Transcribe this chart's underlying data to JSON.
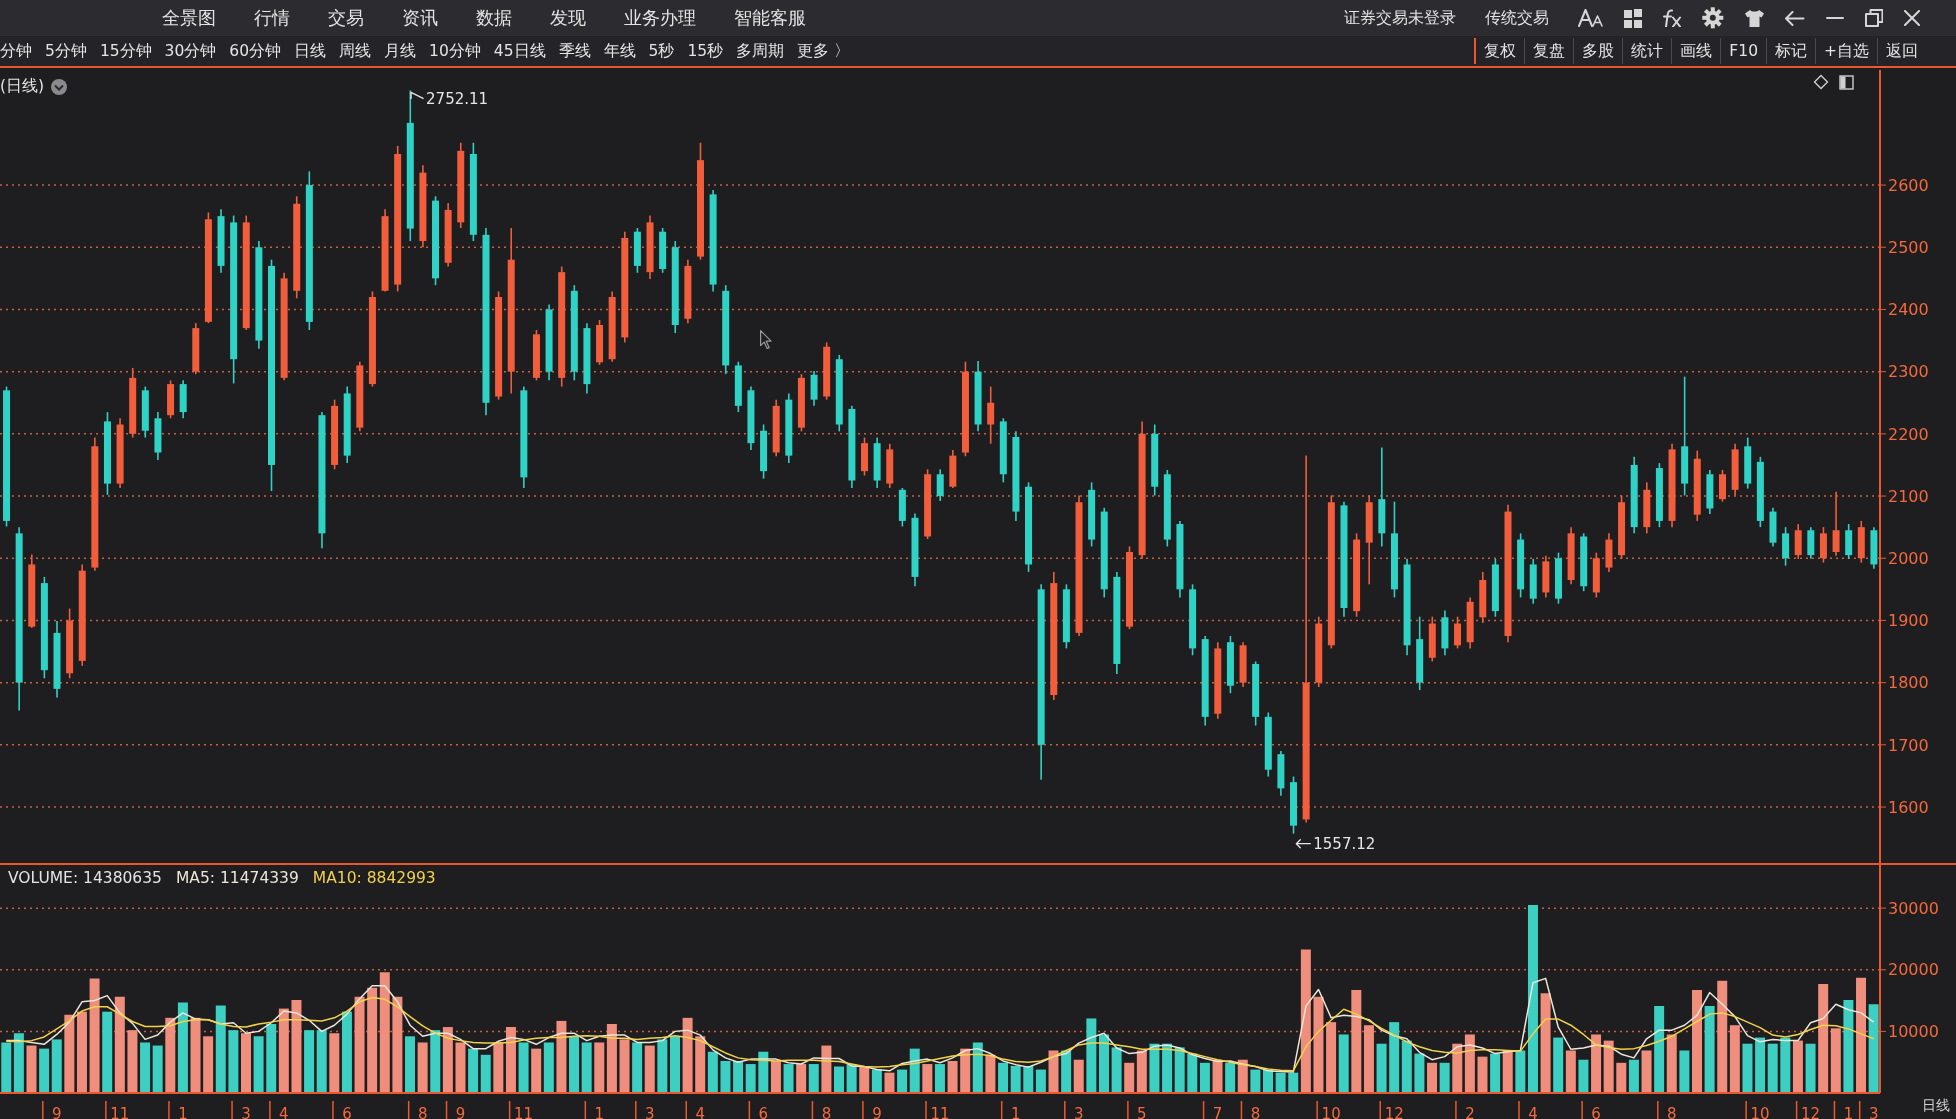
{
  "chart_data": [
    {
      "type": "other",
      "categories": [
        "全景图",
        "行情",
        "交易",
        "资讯",
        "数据",
        "发现",
        "业务办理",
        "智能客服"
      ],
      "annotations": [
        "证券交易未登录",
        "传统交易"
      ]
    },
    {
      "type": "other",
      "categories": [
        "分钟",
        "5分钟",
        "15分钟",
        "30分钟",
        "60分钟",
        "日线",
        "周线",
        "月线",
        "10分钟",
        "45日线",
        "季线",
        "年线",
        "5秒",
        "15秒",
        "多周期",
        "更多 〉"
      ],
      "annotations": [
        "复权",
        "复盘",
        "多股",
        "统计",
        "画线",
        "F10",
        "标记",
        "+自选",
        "返回"
      ]
    },
    {
      "type": "candlestick",
      "title": "(日线)",
      "tick_labels": "y",
      "grid": "y",
      "ylim": [
        1510,
        2785
      ],
      "yticks": [
        1600,
        1700,
        1800,
        1900,
        2000,
        2100,
        2200,
        2300,
        2400,
        2500,
        2600
      ],
      "categories": [
        null,
        null,
        null,
        null,
        "9",
        null,
        null,
        null,
        null,
        "11",
        null,
        null,
        null,
        null,
        "1",
        null,
        null,
        null,
        null,
        "3",
        null,
        null,
        "4",
        null,
        null,
        null,
        null,
        "6",
        null,
        null,
        null,
        null,
        null,
        "8",
        null,
        null,
        "9",
        null,
        null,
        null,
        null,
        "11",
        null,
        null,
        null,
        null,
        null,
        "1",
        null,
        null,
        null,
        "3",
        null,
        null,
        null,
        "4",
        null,
        null,
        null,
        null,
        "6",
        null,
        null,
        null,
        null,
        "8",
        null,
        null,
        null,
        "9",
        null,
        null,
        null,
        null,
        "11",
        null,
        null,
        null,
        null,
        null,
        "1",
        null,
        null,
        null,
        null,
        "3",
        null,
        null,
        null,
        null,
        "5",
        null,
        null,
        null,
        null,
        null,
        "7",
        null,
        null,
        "8",
        null,
        null,
        null,
        null,
        null,
        "10",
        null,
        null,
        null,
        null,
        "12",
        null,
        null,
        null,
        null,
        null,
        "2",
        null,
        null,
        null,
        null,
        "4",
        null,
        null,
        null,
        null,
        "6",
        null,
        null,
        null,
        null,
        null,
        "8",
        null,
        null,
        null,
        null,
        null,
        null,
        "10",
        null,
        null,
        null,
        "12",
        null,
        null,
        "1",
        null,
        "3"
      ],
      "ohlc": [
        [
          2270,
          2276,
          2051,
          2060
        ],
        [
          2040,
          2050,
          1755,
          1800
        ],
        [
          1890,
          2006,
          1888,
          1990
        ],
        [
          1960,
          1970,
          1807,
          1820
        ],
        [
          1880,
          1899,
          1776,
          1790
        ],
        [
          1815,
          1919,
          1807,
          1900
        ],
        [
          1835,
          1990,
          1827,
          1980
        ],
        [
          1985,
          2194,
          1980,
          2180
        ],
        [
          2220,
          2235,
          2102,
          2120
        ],
        [
          2120,
          2225,
          2113,
          2215
        ],
        [
          2200,
          2306,
          2194,
          2290
        ],
        [
          2270,
          2276,
          2194,
          2205
        ],
        [
          2225,
          2235,
          2158,
          2170
        ],
        [
          2230,
          2286,
          2225,
          2280
        ],
        [
          2280,
          2286,
          2225,
          2235
        ],
        [
          2300,
          2378,
          2296,
          2370
        ],
        [
          2380,
          2556,
          2378,
          2545
        ],
        [
          2550,
          2561,
          2459,
          2470
        ],
        [
          2540,
          2551,
          2281,
          2320
        ],
        [
          2370,
          2551,
          2367,
          2540
        ],
        [
          2500,
          2510,
          2337,
          2350
        ],
        [
          2470,
          2480,
          2108,
          2150
        ],
        [
          2290,
          2459,
          2286,
          2450
        ],
        [
          2430,
          2582,
          2418,
          2570
        ],
        [
          2600,
          2622,
          2367,
          2380
        ],
        [
          2230,
          2235,
          2016,
          2040
        ],
        [
          2150,
          2255,
          2143,
          2245
        ],
        [
          2265,
          2276,
          2153,
          2165
        ],
        [
          2210,
          2316,
          2204,
          2310
        ],
        [
          2280,
          2429,
          2276,
          2420
        ],
        [
          2430,
          2561,
          2429,
          2550
        ],
        [
          2440,
          2663,
          2429,
          2650
        ],
        [
          2700,
          2752.11,
          2510,
          2530
        ],
        [
          2510,
          2632,
          2500,
          2620
        ],
        [
          2575,
          2582,
          2439,
          2450
        ],
        [
          2475,
          2571,
          2469,
          2560
        ],
        [
          2540,
          2668,
          2531,
          2655
        ],
        [
          2650,
          2668,
          2510,
          2520
        ],
        [
          2520,
          2531,
          2230,
          2250
        ],
        [
          2260,
          2429,
          2255,
          2420
        ],
        [
          2300,
          2531,
          2265,
          2480
        ],
        [
          2270,
          2276,
          2113,
          2130
        ],
        [
          2290,
          2367,
          2286,
          2360
        ],
        [
          2400,
          2408,
          2286,
          2300
        ],
        [
          2290,
          2469,
          2276,
          2460
        ],
        [
          2430,
          2439,
          2286,
          2300
        ],
        [
          2370,
          2378,
          2265,
          2280
        ],
        [
          2315,
          2383,
          2311,
          2375
        ],
        [
          2320,
          2429,
          2316,
          2420
        ],
        [
          2355,
          2525,
          2347,
          2515
        ],
        [
          2525,
          2531,
          2459,
          2470
        ],
        [
          2460,
          2551,
          2449,
          2540
        ],
        [
          2525,
          2531,
          2459,
          2465
        ],
        [
          2500,
          2510,
          2362,
          2375
        ],
        [
          2385,
          2480,
          2378,
          2470
        ],
        [
          2485,
          2668,
          2480,
          2640
        ],
        [
          2585,
          2592,
          2429,
          2440
        ],
        [
          2430,
          2439,
          2296,
          2310
        ],
        [
          2310,
          2316,
          2235,
          2245
        ],
        [
          2270,
          2276,
          2174,
          2185
        ],
        [
          2205,
          2215,
          2128,
          2140
        ],
        [
          2170,
          2255,
          2164,
          2245
        ],
        [
          2255,
          2265,
          2153,
          2165
        ],
        [
          2210,
          2296,
          2204,
          2290
        ],
        [
          2295,
          2301,
          2245,
          2255
        ],
        [
          2260,
          2347,
          2255,
          2340
        ],
        [
          2320,
          2327,
          2204,
          2215
        ],
        [
          2240,
          2245,
          2113,
          2125
        ],
        [
          2140,
          2194,
          2133,
          2185
        ],
        [
          2185,
          2194,
          2113,
          2125
        ],
        [
          2120,
          2184,
          2113,
          2175
        ],
        [
          2110,
          2113,
          2051,
          2060
        ],
        [
          2065,
          2072,
          1955,
          1970
        ],
        [
          2035,
          2143,
          2031,
          2135
        ],
        [
          2135,
          2143,
          2092,
          2100
        ],
        [
          2115,
          2174,
          2113,
          2165
        ],
        [
          2170,
          2316,
          2164,
          2300
        ],
        [
          2300,
          2317,
          2204,
          2215
        ],
        [
          2215,
          2276,
          2184,
          2250
        ],
        [
          2220,
          2225,
          2122,
          2135
        ],
        [
          2195,
          2204,
          2060,
          2075
        ],
        [
          2115,
          2122,
          1978,
          1990
        ],
        [
          1950,
          1958,
          1644,
          1700
        ],
        [
          1780,
          1978,
          1772,
          1960
        ],
        [
          1950,
          1958,
          1855,
          1865
        ],
        [
          1880,
          2101,
          1875,
          2090
        ],
        [
          2110,
          2122,
          2019,
          2030
        ],
        [
          2075,
          2081,
          1937,
          1950
        ],
        [
          1970,
          1978,
          1814,
          1830
        ],
        [
          1890,
          2019,
          1886,
          2010
        ],
        [
          2005,
          2220,
          1999,
          2200
        ],
        [
          2200,
          2215,
          2101,
          2115
        ],
        [
          2135,
          2142,
          2019,
          2030
        ],
        [
          2055,
          2060,
          1937,
          1950
        ],
        [
          1950,
          1958,
          1844,
          1855
        ],
        [
          1870,
          1875,
          1731,
          1745
        ],
        [
          1750,
          1865,
          1742,
          1855
        ],
        [
          1865,
          1875,
          1783,
          1795
        ],
        [
          1800,
          1865,
          1793,
          1860
        ],
        [
          1830,
          1834,
          1731,
          1745
        ],
        [
          1745,
          1752,
          1649,
          1660
        ],
        [
          1685,
          1690,
          1618,
          1630
        ],
        [
          1640,
          1649,
          1557.12,
          1570
        ],
        [
          1580,
          2165,
          1575,
          1800
        ],
        [
          1800,
          1906,
          1793,
          1895
        ],
        [
          1860,
          2101,
          1855,
          2090
        ],
        [
          2085,
          2091,
          1906,
          1920
        ],
        [
          1915,
          2040,
          1906,
          2030
        ],
        [
          2025,
          2101,
          1958,
          2090
        ],
        [
          2095,
          2178,
          2019,
          2040
        ],
        [
          2040,
          2091,
          1937,
          1950
        ],
        [
          1990,
          1999,
          1844,
          1860
        ],
        [
          1870,
          1906,
          1788,
          1800
        ],
        [
          1840,
          1906,
          1834,
          1895
        ],
        [
          1905,
          1916,
          1844,
          1855
        ],
        [
          1860,
          1906,
          1855,
          1895
        ],
        [
          1865,
          1937,
          1855,
          1930
        ],
        [
          1905,
          1978,
          1896,
          1965
        ],
        [
          1990,
          1999,
          1906,
          1915
        ],
        [
          1875,
          2086,
          1865,
          2075
        ],
        [
          2030,
          2040,
          1937,
          1950
        ],
        [
          1990,
          1999,
          1927,
          1935
        ],
        [
          1945,
          2004,
          1937,
          1995
        ],
        [
          2000,
          2009,
          1927,
          1935
        ],
        [
          1965,
          2050,
          1958,
          2040
        ],
        [
          2035,
          2040,
          1947,
          1955
        ],
        [
          1945,
          2009,
          1937,
          2000
        ],
        [
          1985,
          2040,
          1978,
          2030
        ],
        [
          2005,
          2101,
          1999,
          2090
        ],
        [
          2150,
          2163,
          2040,
          2050
        ],
        [
          2050,
          2122,
          2040,
          2110
        ],
        [
          2145,
          2153,
          2050,
          2060
        ],
        [
          2060,
          2184,
          2050,
          2175
        ],
        [
          2180,
          2292,
          2101,
          2120
        ],
        [
          2070,
          2173,
          2060,
          2160
        ],
        [
          2135,
          2142,
          2071,
          2080
        ],
        [
          2095,
          2142,
          2091,
          2135
        ],
        [
          2110,
          2184,
          2101,
          2175
        ],
        [
          2180,
          2194,
          2112,
          2120
        ],
        [
          2155,
          2163,
          2050,
          2060
        ],
        [
          2075,
          2081,
          2019,
          2025
        ],
        [
          2040,
          2050,
          1988,
          2000
        ],
        [
          2005,
          2055,
          1999,
          2045
        ],
        [
          2045,
          2050,
          1999,
          2005
        ],
        [
          2000,
          2050,
          1993,
          2040
        ],
        [
          2010,
          2107,
          2004,
          2045
        ],
        [
          2045,
          2055,
          1999,
          2005
        ],
        [
          2000,
          2060,
          1993,
          2050
        ],
        [
          2045,
          2050,
          1983,
          1990
        ]
      ],
      "colors": [
        "#2fd3c6",
        "#2fd3c6",
        "#f25e3c",
        "#2fd3c6",
        "#2fd3c6",
        "#f25e3c",
        "#f25e3c",
        "#f25e3c",
        "#2fd3c6",
        "#f25e3c",
        "#f25e3c",
        "#2fd3c6",
        "#2fd3c6",
        "#f25e3c",
        "#2fd3c6",
        "#f25e3c",
        "#f25e3c",
        "#2fd3c6",
        "#2fd3c6",
        "#f25e3c",
        "#2fd3c6",
        "#2fd3c6",
        "#f25e3c",
        "#f25e3c",
        "#2fd3c6",
        "#2fd3c6",
        "#f25e3c",
        "#2fd3c6",
        "#f25e3c",
        "#f25e3c",
        "#f25e3c",
        "#f25e3c",
        "#2fd3c6",
        "#f25e3c",
        "#2fd3c6",
        "#f25e3c",
        "#f25e3c",
        "#2fd3c6",
        "#2fd3c6",
        "#f25e3c",
        "#f25e3c",
        "#2fd3c6",
        "#f25e3c",
        "#2fd3c6",
        "#f25e3c",
        "#2fd3c6",
        "#2fd3c6",
        "#f25e3c",
        "#f25e3c",
        "#f25e3c",
        "#2fd3c6",
        "#f25e3c",
        "#2fd3c6",
        "#2fd3c6",
        "#f25e3c",
        "#f25e3c",
        "#2fd3c6",
        "#2fd3c6",
        "#2fd3c6",
        "#2fd3c6",
        "#2fd3c6",
        "#f25e3c",
        "#2fd3c6",
        "#f25e3c",
        "#2fd3c6",
        "#f25e3c",
        "#2fd3c6",
        "#2fd3c6",
        "#f25e3c",
        "#2fd3c6",
        "#f25e3c",
        "#2fd3c6",
        "#2fd3c6",
        "#f25e3c",
        "#2fd3c6",
        "#f25e3c",
        "#f25e3c",
        "#2fd3c6",
        "#f25e3c",
        "#2fd3c6",
        "#2fd3c6",
        "#2fd3c6",
        "#2fd3c6",
        "#f25e3c",
        "#2fd3c6",
        "#f25e3c",
        "#2fd3c6",
        "#2fd3c6",
        "#2fd3c6",
        "#f25e3c",
        "#f25e3c",
        "#2fd3c6",
        "#2fd3c6",
        "#2fd3c6",
        "#2fd3c6",
        "#2fd3c6",
        "#f25e3c",
        "#2fd3c6",
        "#f25e3c",
        "#2fd3c6",
        "#2fd3c6",
        "#2fd3c6",
        "#2fd3c6",
        "#f25e3c",
        "#f25e3c",
        "#f25e3c",
        "#2fd3c6",
        "#f25e3c",
        "#f25e3c",
        "#2fd3c6",
        "#2fd3c6",
        "#2fd3c6",
        "#2fd3c6",
        "#f25e3c",
        "#2fd3c6",
        "#f25e3c",
        "#f25e3c",
        "#f25e3c",
        "#2fd3c6",
        "#f25e3c",
        "#2fd3c6",
        "#2fd3c6",
        "#f25e3c",
        "#2fd3c6",
        "#f25e3c",
        "#2fd3c6",
        "#f25e3c",
        "#f25e3c",
        "#f25e3c",
        "#2fd3c6",
        "#f25e3c",
        "#2fd3c6",
        "#f25e3c",
        "#2fd3c6",
        "#f25e3c",
        "#2fd3c6",
        "#f25e3c",
        "#f25e3c",
        "#2fd3c6",
        "#2fd3c6",
        "#2fd3c6",
        "#2fd3c6",
        "#f25e3c",
        "#2fd3c6",
        "#f25e3c",
        "#f25e3c",
        "#2fd3c6",
        "#f25e3c",
        "#2fd3c6"
      ],
      "annotations": [
        "2752.11",
        "1557.12"
      ]
    },
    {
      "type": "bar",
      "title": "VOLUME: 14380635",
      "grid": "y",
      "legend": "top left",
      "xlabel": "日线",
      "ylim": [
        0,
        37000
      ],
      "yticks": [
        10000,
        20000,
        30000
      ],
      "categories": [
        null,
        null,
        null,
        null,
        "9",
        null,
        null,
        null,
        null,
        "11",
        null,
        null,
        null,
        null,
        "1",
        null,
        null,
        null,
        null,
        "3",
        null,
        null,
        "4",
        null,
        null,
        null,
        null,
        "6",
        null,
        null,
        null,
        null,
        null,
        "8",
        null,
        null,
        "9",
        null,
        null,
        null,
        null,
        "11",
        null,
        null,
        null,
        null,
        null,
        "1",
        null,
        null,
        null,
        "3",
        null,
        null,
        null,
        "4",
        null,
        null,
        null,
        null,
        "6",
        null,
        null,
        null,
        null,
        "8",
        null,
        null,
        null,
        "9",
        null,
        null,
        null,
        null,
        "11",
        null,
        null,
        null,
        null,
        null,
        "1",
        null,
        null,
        null,
        null,
        "3",
        null,
        null,
        null,
        null,
        "5",
        null,
        null,
        null,
        null,
        null,
        "7",
        null,
        null,
        "8",
        null,
        null,
        null,
        null,
        null,
        "10",
        null,
        null,
        null,
        null,
        "12",
        null,
        null,
        null,
        null,
        null,
        "2",
        null,
        null,
        null,
        null,
        "4",
        null,
        null,
        null,
        null,
        "6",
        null,
        null,
        null,
        null,
        null,
        "8",
        null,
        null,
        null,
        null,
        null,
        null,
        "10",
        null,
        null,
        null,
        "12",
        null,
        null,
        "1",
        null,
        "3"
      ],
      "series": [
        {
          "type": "bar",
          "values": [
            8200,
            9700,
            7700,
            7200,
            8700,
            12700,
            13200,
            18600,
            13200,
            15600,
            10200,
            8200,
            7700,
            12200,
            14700,
            12200,
            9200,
            14200,
            10200,
            9700,
            9200,
            11200,
            13700,
            15100,
            10200,
            10200,
            9700,
            13200,
            15600,
            17100,
            19600,
            15600,
            9200,
            8200,
            10200,
            10700,
            8200,
            7200,
            6200,
            8200,
            10700,
            8200,
            7200,
            8200,
            11700,
            9200,
            8200,
            8200,
            11200,
            8700,
            8200,
            7700,
            8700,
            9200,
            12200,
            9200,
            6700,
            5200,
            5200,
            4700,
            6700,
            5200,
            4700,
            4700,
            4700,
            7700,
            4300,
            4700,
            4300,
            3800,
            3300,
            3800,
            7200,
            4700,
            4700,
            5200,
            7200,
            8200,
            6200,
            4900,
            4400,
            4400,
            3800,
            6900,
            6900,
            5400,
            12100,
            9500,
            7400,
            4900,
            6900,
            8000,
            8000,
            7400,
            6400,
            4900,
            5400,
            4900,
            5400,
            3800,
            3800,
            3300,
            3300,
            23300,
            15600,
            11500,
            9500,
            16700,
            11000,
            8000,
            11500,
            8500,
            6400,
            4900,
            4900,
            8000,
            9500,
            5900,
            6400,
            6900,
            6900,
            30500,
            16200,
            9000,
            6900,
            5400,
            9500,
            8500,
            4900,
            5400,
            6900,
            14100,
            9500,
            6900,
            16700,
            14100,
            18200,
            11000,
            8000,
            9000,
            8000,
            9000,
            8500,
            8000,
            17700,
            10500,
            15100,
            18700,
            14400
          ],
          "colors": [
            "#3ccfc2",
            "#3ccfc2",
            "#ef8e7d",
            "#3ccfc2",
            "#3ccfc2",
            "#ef8e7d",
            "#ef8e7d",
            "#ef8e7d",
            "#3ccfc2",
            "#ef8e7d",
            "#ef8e7d",
            "#3ccfc2",
            "#3ccfc2",
            "#ef8e7d",
            "#3ccfc2",
            "#ef8e7d",
            "#ef8e7d",
            "#3ccfc2",
            "#3ccfc2",
            "#ef8e7d",
            "#3ccfc2",
            "#3ccfc2",
            "#ef8e7d",
            "#ef8e7d",
            "#3ccfc2",
            "#3ccfc2",
            "#ef8e7d",
            "#3ccfc2",
            "#ef8e7d",
            "#ef8e7d",
            "#ef8e7d",
            "#ef8e7d",
            "#3ccfc2",
            "#ef8e7d",
            "#3ccfc2",
            "#ef8e7d",
            "#ef8e7d",
            "#3ccfc2",
            "#3ccfc2",
            "#ef8e7d",
            "#ef8e7d",
            "#3ccfc2",
            "#ef8e7d",
            "#3ccfc2",
            "#ef8e7d",
            "#3ccfc2",
            "#3ccfc2",
            "#ef8e7d",
            "#ef8e7d",
            "#ef8e7d",
            "#3ccfc2",
            "#ef8e7d",
            "#3ccfc2",
            "#3ccfc2",
            "#ef8e7d",
            "#ef8e7d",
            "#3ccfc2",
            "#3ccfc2",
            "#3ccfc2",
            "#3ccfc2",
            "#3ccfc2",
            "#ef8e7d",
            "#3ccfc2",
            "#ef8e7d",
            "#3ccfc2",
            "#ef8e7d",
            "#3ccfc2",
            "#3ccfc2",
            "#ef8e7d",
            "#3ccfc2",
            "#ef8e7d",
            "#3ccfc2",
            "#3ccfc2",
            "#ef8e7d",
            "#3ccfc2",
            "#ef8e7d",
            "#ef8e7d",
            "#3ccfc2",
            "#ef8e7d",
            "#3ccfc2",
            "#3ccfc2",
            "#3ccfc2",
            "#3ccfc2",
            "#ef8e7d",
            "#3ccfc2",
            "#ef8e7d",
            "#3ccfc2",
            "#3ccfc2",
            "#3ccfc2",
            "#ef8e7d",
            "#ef8e7d",
            "#3ccfc2",
            "#3ccfc2",
            "#3ccfc2",
            "#3ccfc2",
            "#3ccfc2",
            "#ef8e7d",
            "#3ccfc2",
            "#ef8e7d",
            "#3ccfc2",
            "#3ccfc2",
            "#3ccfc2",
            "#3ccfc2",
            "#ef8e7d",
            "#ef8e7d",
            "#ef8e7d",
            "#3ccfc2",
            "#ef8e7d",
            "#ef8e7d",
            "#3ccfc2",
            "#3ccfc2",
            "#3ccfc2",
            "#3ccfc2",
            "#ef8e7d",
            "#3ccfc2",
            "#ef8e7d",
            "#ef8e7d",
            "#ef8e7d",
            "#3ccfc2",
            "#ef8e7d",
            "#3ccfc2",
            "#3ccfc2",
            "#ef8e7d",
            "#3ccfc2",
            "#ef8e7d",
            "#3ccfc2",
            "#ef8e7d",
            "#ef8e7d",
            "#ef8e7d",
            "#3ccfc2",
            "#ef8e7d",
            "#3ccfc2",
            "#ef8e7d",
            "#3ccfc2",
            "#ef8e7d",
            "#3ccfc2",
            "#ef8e7d",
            "#ef8e7d",
            "#3ccfc2",
            "#3ccfc2",
            "#3ccfc2",
            "#3ccfc2",
            "#ef8e7d",
            "#3ccfc2",
            "#ef8e7d",
            "#ef8e7d",
            "#3ccfc2",
            "#ef8e7d",
            "#3ccfc2"
          ]
        },
        {
          "name": "MA5: 11474339",
          "type": "line",
          "color": "#ece6d8",
          "values": [
            8500,
            8500,
            8200,
            7900,
            9500,
            11500,
            14800,
            15000,
            15800,
            13000,
            11300,
            8700,
            9400,
            11500,
            13000,
            12000,
            11900,
            11200,
            11400,
            9700,
            10000,
            11400,
            13300,
            13000,
            11800,
            10000,
            11000,
            12800,
            15300,
            17400,
            17400,
            14800,
            11000,
            9200,
            9700,
            9700,
            8700,
            7200,
            7200,
            8400,
            9000,
            8700,
            7900,
            9000,
            9700,
            9700,
            8500,
            9200,
            9400,
            9400,
            8200,
            8200,
            8500,
            10000,
            10200,
            9400,
            7000,
            5700,
            5000,
            5500,
            5500,
            5500,
            4900,
            4700,
            5700,
            5600,
            5600,
            4400,
            4300,
            3800,
            3600,
            4800,
            5200,
            5500,
            4900,
            5700,
            6900,
            7200,
            6400,
            5200,
            4600,
            4200,
            5000,
            5900,
            6400,
            8100,
            9000,
            9700,
            7300,
            6400,
            6600,
            7600,
            7800,
            7300,
            6200,
            5600,
            5100,
            5200,
            4700,
            4300,
            3600,
            3500,
            3400,
            14100,
            16800,
            12200,
            12600,
            12400,
            11900,
            10200,
            9300,
            8800,
            6600,
            5400,
            5900,
            7500,
            7800,
            7300,
            6400,
            6700,
            6900,
            17900,
            18600,
            10700,
            7100,
            7300,
            7800,
            7600,
            6300,
            5700,
            8800,
            10200,
            10200,
            11000,
            12600,
            16300,
            14400,
            12400,
            9300,
            8300,
            8700,
            8500,
            8500,
            11400,
            12100,
            14400,
            13500,
            13000,
            11500
          ]
        },
        {
          "name": "MA10: 8842993",
          "type": "line",
          "color": "#f2d24a",
          "values": [
            8400,
            8300,
            8500,
            9100,
            10400,
            11700,
            13300,
            14000,
            14000,
            12800,
            11600,
            10800,
            10800,
            10900,
            11600,
            11900,
            11900,
            11200,
            10800,
            10700,
            11200,
            11500,
            11900,
            11900,
            11800,
            11700,
            12200,
            13300,
            14800,
            15500,
            15200,
            14000,
            12400,
            10900,
            9700,
            8900,
            8500,
            8200,
            8100,
            8100,
            8200,
            8600,
            8900,
            9000,
            9000,
            9200,
            9300,
            9200,
            8900,
            8900,
            8700,
            8900,
            9000,
            9300,
            9000,
            8500,
            7500,
            6500,
            5700,
            5400,
            5300,
            5200,
            5300,
            5300,
            5300,
            5200,
            5100,
            4700,
            4300,
            4200,
            4300,
            4600,
            4800,
            5200,
            5600,
            6000,
            6200,
            6300,
            6100,
            5500,
            5100,
            5000,
            5200,
            5900,
            6900,
            7800,
            8100,
            8100,
            7800,
            7500,
            7100,
            7100,
            7100,
            6900,
            6400,
            5900,
            5400,
            5000,
            4600,
            4300,
            3900,
            3700,
            3600,
            7500,
            10000,
            11800,
            13600,
            12800,
            11700,
            10500,
            9400,
            8300,
            7500,
            6900,
            6600,
            6500,
            6900,
            7000,
            7000,
            6900,
            6800,
            9600,
            12000,
            12000,
            11000,
            9500,
            7800,
            7400,
            7100,
            7200,
            7700,
            8400,
            9200,
            10400,
            11600,
            12800,
            13000,
            12400,
            11500,
            10600,
            9400,
            9100,
            9500,
            10300,
            11000,
            10900,
            10400,
            9600,
            8800
          ]
        }
      ]
    }
  ]
}
